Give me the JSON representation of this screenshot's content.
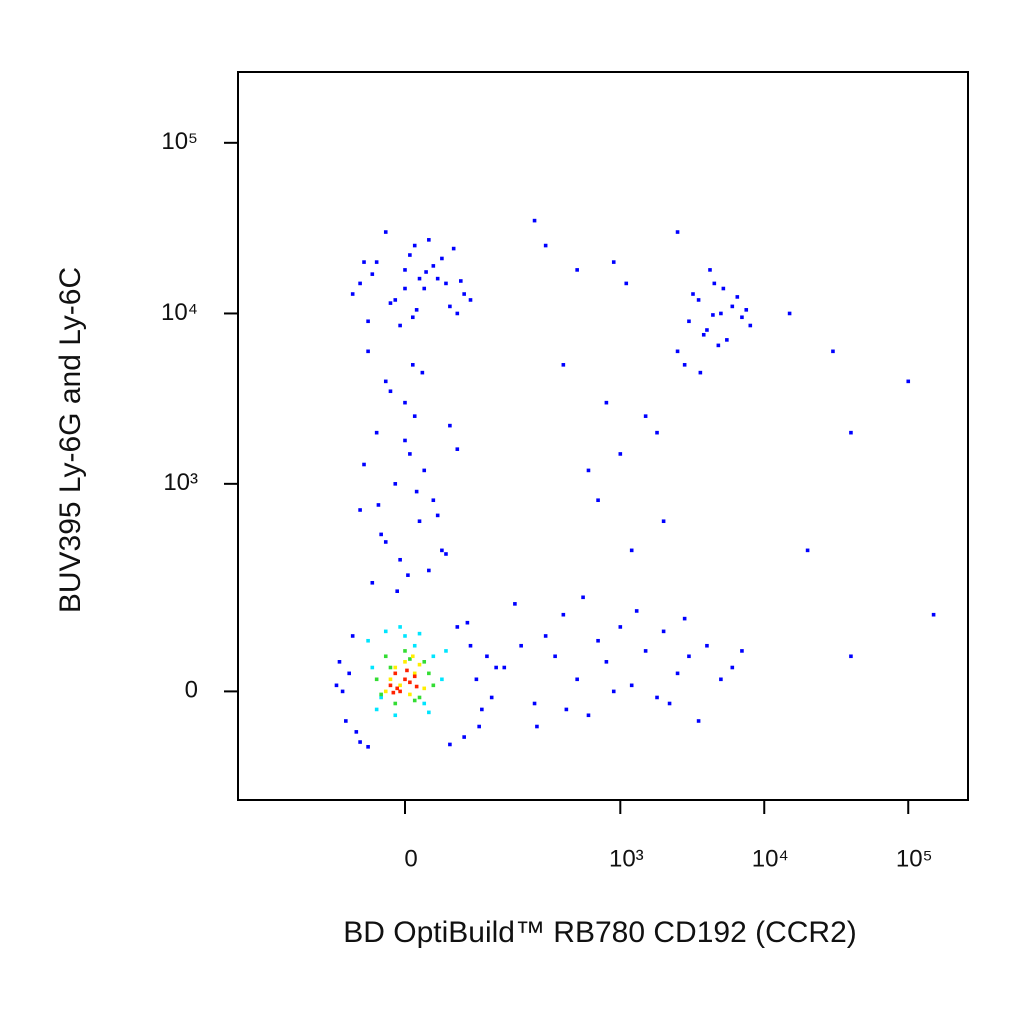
{
  "chart_data": {
    "type": "scatter",
    "xlabel": "BD OptiBuild™ RB780 CD192 (CCR2)",
    "ylabel": "BUV395 Ly-6G and Ly-6C",
    "xscale": "asinh",
    "yscale": "asinh",
    "xlim": [
      -460,
      260000
    ],
    "ylim": [
      -250,
      260000
    ],
    "xticks": [
      0,
      {
        "value": 1000,
        "label": "10³"
      },
      {
        "value": 10000,
        "label": "10⁴"
      },
      {
        "value": 100000,
        "label": "10⁵"
      }
    ],
    "yticks": [
      0,
      {
        "value": 1000,
        "label": "10³"
      },
      {
        "value": 10000,
        "label": "10⁴"
      },
      {
        "value": 100000,
        "label": "10⁵"
      }
    ],
    "series": [
      {
        "color": "#0000ff",
        "x": [
          -50,
          -30,
          -10,
          0,
          10,
          20,
          35,
          50,
          70,
          -40,
          -20,
          5,
          15,
          30,
          60,
          -60,
          -5,
          25,
          45,
          80,
          -35,
          0,
          12,
          40,
          -15,
          55,
          -45,
          8,
          22,
          65,
          -40,
          -20,
          0,
          10,
          -30,
          5,
          20,
          -10,
          30,
          -50,
          15,
          -25,
          40,
          -5,
          25,
          -35,
          8,
          -15,
          50,
          0,
          -45,
          12,
          35,
          -20,
          3,
          -8,
          18,
          60,
          -28,
          45,
          -80,
          -70,
          90,
          100,
          -60,
          80,
          -75,
          70,
          -50,
          60,
          110,
          -65,
          120,
          -55,
          95,
          -40,
          75,
          -85,
          50,
          130,
          150,
          200,
          250,
          300,
          350,
          400,
          500,
          600,
          700,
          800,
          1000,
          1200,
          1500,
          1800,
          2000,
          2500,
          3000,
          3500,
          4000,
          5000,
          180,
          260,
          420,
          550,
          900,
          1300,
          2200,
          2800,
          6000,
          7000,
          2500,
          3000,
          3500,
          4000,
          4500,
          5000,
          5500,
          6000,
          7000,
          8000,
          2800,
          3200,
          3800,
          4200,
          4800,
          5200,
          6500,
          7500,
          3600,
          4400,
          300,
          500,
          800,
          1000,
          1500,
          2000,
          700,
          1200,
          400,
          900,
          600,
          1800,
          2500,
          15000,
          30000,
          40000,
          100000,
          20000,
          1100,
          250,
          150000,
          40000
        ],
        "values": [
          15000,
          20000,
          12000,
          18000,
          25000,
          14000,
          16000,
          11000,
          13000,
          9000,
          30000,
          22000,
          16000,
          19000,
          10000,
          13000,
          8500,
          27000,
          15000,
          12000,
          17000,
          14000,
          10500,
          21000,
          11500,
          24000,
          20000,
          9500,
          17500,
          15500,
          6000,
          4000,
          3000,
          2500,
          2000,
          1500,
          1200,
          1000,
          800,
          700,
          600,
          500,
          400,
          350,
          300,
          250,
          5000,
          3500,
          2200,
          1800,
          1300,
          900,
          650,
          450,
          280,
          220,
          4500,
          1600,
          750,
          380,
          50,
          -50,
          20,
          -30,
          100,
          80,
          0,
          -80,
          -90,
          120,
          60,
          30,
          -10,
          -70,
          -60,
          -100,
          130,
          10,
          -95,
          40,
          40,
          80,
          -20,
          100,
          60,
          150,
          20,
          -40,
          90,
          50,
          120,
          10,
          70,
          -10,
          110,
          30,
          60,
          -50,
          80,
          20,
          180,
          -60,
          -30,
          200,
          0,
          160,
          -20,
          140,
          40,
          70,
          6000,
          9000,
          12000,
          8000,
          15000,
          10000,
          7000,
          11000,
          9500,
          8500,
          5000,
          13000,
          7500,
          18000,
          6500,
          14000,
          12500,
          10500,
          4500,
          9800,
          25000,
          18000,
          3000,
          1500,
          2500,
          600,
          800,
          400,
          5000,
          20000,
          1200,
          2000,
          30000,
          10000,
          6000,
          2000,
          4000,
          400,
          15000,
          35000,
          150,
          60
        ]
      },
      {
        "color": "#00e5ff",
        "x": [
          -40,
          -30,
          -20,
          -10,
          0,
          10,
          20,
          30,
          40,
          -35,
          25,
          -5,
          45,
          -25,
          15
        ],
        "values": [
          90,
          -30,
          110,
          -40,
          100,
          80,
          -20,
          60,
          20,
          40,
          -35,
          120,
          70,
          -10,
          105
        ]
      },
      {
        "color": "#33dd33",
        "x": [
          -30,
          -20,
          -10,
          0,
          10,
          20,
          30,
          -25,
          25,
          -15,
          15,
          5
        ],
        "values": [
          20,
          60,
          -20,
          70,
          -15,
          50,
          10,
          -5,
          30,
          40,
          -10,
          55
        ]
      },
      {
        "color": "#ffee00",
        "x": [
          -20,
          -10,
          0,
          10,
          20,
          -15,
          5,
          15,
          -5,
          8
        ],
        "values": [
          0,
          40,
          50,
          30,
          5,
          20,
          -5,
          45,
          10,
          60
        ]
      },
      {
        "color": "#ff2200",
        "x": [
          -15,
          -10,
          -5,
          0,
          5,
          10,
          -8,
          2,
          12,
          -12
        ],
        "values": [
          10,
          30,
          0,
          20,
          15,
          25,
          5,
          35,
          8,
          -2
        ]
      }
    ]
  }
}
